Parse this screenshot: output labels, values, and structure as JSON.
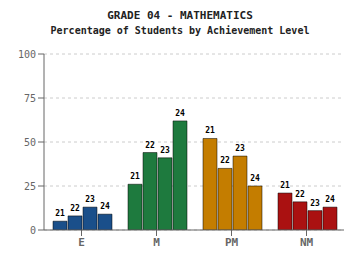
{
  "chart_data": {
    "type": "bar",
    "title": "GRADE 04 - MATHEMATICS",
    "subtitle": "Percentage of Students by Achievement Level",
    "categories": [
      "E",
      "M",
      "PM",
      "NM"
    ],
    "series": [
      {
        "name": "21",
        "values": [
          5,
          26,
          52,
          21
        ]
      },
      {
        "name": "22",
        "values": [
          8,
          44,
          35,
          16
        ]
      },
      {
        "name": "23",
        "values": [
          13,
          41,
          42,
          11
        ]
      },
      {
        "name": "24",
        "values": [
          9,
          62,
          25,
          13
        ]
      }
    ],
    "colors": [
      "#1a4f8a",
      "#1e7a3e",
      "#c47d00",
      "#aa1111"
    ],
    "ylim": [
      0,
      100
    ],
    "yticks": [
      0,
      25,
      50,
      75,
      100
    ],
    "grid": true
  }
}
